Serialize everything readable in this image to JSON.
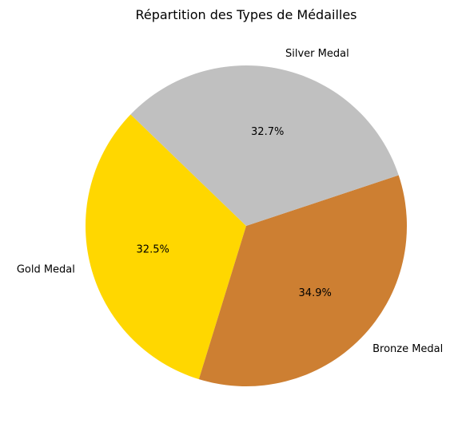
{
  "chart_data": {
    "type": "pie",
    "title": "Répartition des Types de Médailles",
    "categories": [
      "Gold Medal",
      "Bronze Medal",
      "Silver Medal"
    ],
    "values": [
      32.5,
      34.9,
      32.7
    ],
    "value_labels": [
      "32.5%",
      "34.9%",
      "32.7%"
    ],
    "colors": [
      "#FFD700",
      "#CD7F32",
      "#C0C0C0"
    ],
    "legend": "none"
  }
}
